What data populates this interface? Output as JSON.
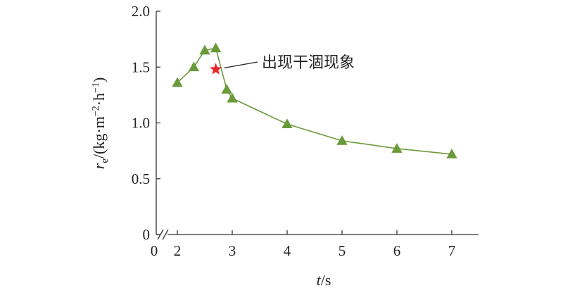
{
  "chart_data": {
    "type": "line",
    "x": [
      2.0,
      2.3,
      2.5,
      2.7,
      2.9,
      3.0,
      4.0,
      5.0,
      6.0,
      7.0
    ],
    "series": [
      {
        "values": [
          1.36,
          1.5,
          1.65,
          1.67,
          1.3,
          1.22,
          0.99,
          0.84,
          0.77,
          0.72
        ],
        "color": "#6b9a3a",
        "marker": "triangle"
      }
    ],
    "highlight_point": {
      "x": 2.7,
      "y": 1.48,
      "marker": "star",
      "color": "#e8252b"
    },
    "annotation": {
      "text": "出现干涸现象"
    },
    "xlabel": {
      "main": "t",
      "suffix": "/s"
    },
    "ylabel": {
      "main": "r",
      "subscript": "e",
      "unit": "/(kg·m",
      "exp1": "−2",
      "unit2": "·h",
      "exp2": "−1",
      "close": ")"
    },
    "xlim": [
      0,
      7
    ],
    "ylim": [
      0,
      2.0
    ],
    "xticks": [
      "0",
      "2",
      "3",
      "4",
      "5",
      "6",
      "7"
    ],
    "yticks": [
      "0",
      "0.5",
      "1.0",
      "1.5",
      "2.0"
    ],
    "x_axis_break": true,
    "grid": false,
    "legend": "none"
  }
}
